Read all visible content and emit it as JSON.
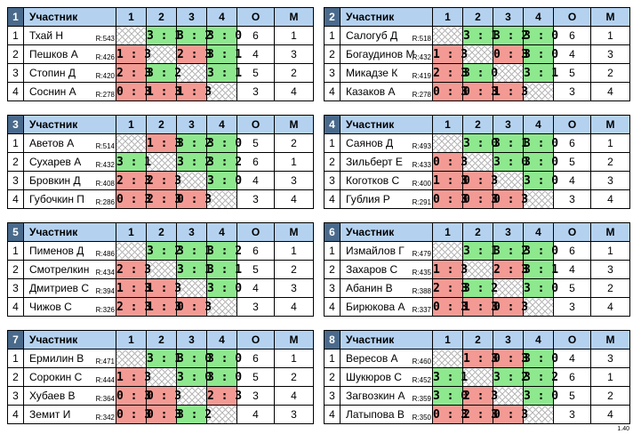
{
  "header": {
    "participant": "Участник",
    "cols": [
      "1",
      "2",
      "3",
      "4"
    ],
    "o": "О",
    "m": "М"
  },
  "version": "1.40",
  "groups": [
    {
      "num": "1",
      "rows": [
        {
          "pos": "1",
          "name": "Тхай Н",
          "rating": "R:543",
          "res": [
            "",
            "3 : 1",
            "3 : 2",
            "3 : 0"
          ],
          "o": "6",
          "m": "1"
        },
        {
          "pos": "2",
          "name": "Пешков А",
          "rating": "R:426",
          "res": [
            "1 : 3",
            "",
            "2 : 3",
            "3 : 1"
          ],
          "o": "4",
          "m": "3"
        },
        {
          "pos": "3",
          "name": "Стопин Д",
          "rating": "R:420",
          "res": [
            "2 : 3",
            "3 : 2",
            "",
            "3 : 1"
          ],
          "o": "5",
          "m": "2"
        },
        {
          "pos": "4",
          "name": "Соснин А",
          "rating": "R:278",
          "res": [
            "0 : 3",
            "1 : 3",
            "1 : 3",
            ""
          ],
          "o": "3",
          "m": "4"
        }
      ]
    },
    {
      "num": "2",
      "rows": [
        {
          "pos": "1",
          "name": "Салогуб Д",
          "rating": "R:518",
          "res": [
            "",
            "3 : 1",
            "3 : 2",
            "3 : 0"
          ],
          "o": "6",
          "m": "1"
        },
        {
          "pos": "2",
          "name": "Богаудинов М",
          "rating": "R:432",
          "res": [
            "1 : 3",
            "",
            "0 : 3",
            "3 : 0"
          ],
          "o": "4",
          "m": "3"
        },
        {
          "pos": "3",
          "name": "Микадзе К",
          "rating": "R:419",
          "res": [
            "2 : 3",
            "3 : 0",
            "",
            "3 : 1"
          ],
          "o": "5",
          "m": "2"
        },
        {
          "pos": "4",
          "name": "Казаков А",
          "rating": "R:278",
          "res": [
            "0 : 3",
            "0 : 3",
            "1 : 3",
            ""
          ],
          "o": "3",
          "m": "4"
        }
      ]
    },
    {
      "num": "3",
      "rows": [
        {
          "pos": "1",
          "name": "Аветов А",
          "rating": "R:514",
          "res": [
            "",
            "1 : 3",
            "3 : 2",
            "3 : 0"
          ],
          "o": "5",
          "m": "2"
        },
        {
          "pos": "2",
          "name": "Сухарев А",
          "rating": "R:432",
          "res": [
            "3 : 1",
            "",
            "3 : 2",
            "3 : 2"
          ],
          "o": "6",
          "m": "1"
        },
        {
          "pos": "3",
          "name": "Бровкин Д",
          "rating": "R:408",
          "res": [
            "2 : 3",
            "2 : 3",
            "",
            "3 : 0"
          ],
          "o": "4",
          "m": "3"
        },
        {
          "pos": "4",
          "name": "Губочкин П",
          "rating": "R:286",
          "res": [
            "0 : 3",
            "2 : 3",
            "0 : 3",
            ""
          ],
          "o": "3",
          "m": "4"
        }
      ]
    },
    {
      "num": "4",
      "rows": [
        {
          "pos": "1",
          "name": "Саянов Д",
          "rating": "R:493",
          "res": [
            "",
            "3 : 0",
            "3 : 1",
            "3 : 0"
          ],
          "o": "6",
          "m": "1"
        },
        {
          "pos": "2",
          "name": "Зильберт Е",
          "rating": "R:433",
          "res": [
            "0 : 3",
            "",
            "3 : 0",
            "3 : 0"
          ],
          "o": "5",
          "m": "2"
        },
        {
          "pos": "3",
          "name": "Коготков С",
          "rating": "R:400",
          "res": [
            "1 : 3",
            "0 : 3",
            "",
            "3 : 0"
          ],
          "o": "4",
          "m": "3"
        },
        {
          "pos": "4",
          "name": "Гублия Р",
          "rating": "R:291",
          "res": [
            "0 : 3",
            "0 : 3",
            "0 : 3",
            ""
          ],
          "o": "3",
          "m": "4"
        }
      ]
    },
    {
      "num": "5",
      "rows": [
        {
          "pos": "1",
          "name": "Пименов Д",
          "rating": "R:486",
          "res": [
            "",
            "3 : 2",
            "3 : 1",
            "3 : 2"
          ],
          "o": "6",
          "m": "1"
        },
        {
          "pos": "2",
          "name": "Смотрелкин",
          "rating": "R:434",
          "res": [
            "2 : 3",
            "",
            "3 : 1",
            "3 : 1"
          ],
          "o": "5",
          "m": "2"
        },
        {
          "pos": "3",
          "name": "Дмитриев С",
          "rating": "R:394",
          "res": [
            "1 : 3",
            "1 : 3",
            "",
            "3 : 0"
          ],
          "o": "4",
          "m": "3"
        },
        {
          "pos": "4",
          "name": "Чижов С",
          "rating": "R:326",
          "res": [
            "2 : 3",
            "1 : 3",
            "0 : 3",
            ""
          ],
          "o": "3",
          "m": "4"
        }
      ]
    },
    {
      "num": "6",
      "rows": [
        {
          "pos": "1",
          "name": "Измайлов Г",
          "rating": "R:479",
          "res": [
            "",
            "3 : 1",
            "3 : 2",
            "3 : 0"
          ],
          "o": "6",
          "m": "1"
        },
        {
          "pos": "2",
          "name": "Захаров С",
          "rating": "R:435",
          "res": [
            "1 : 3",
            "",
            "2 : 3",
            "3 : 1"
          ],
          "o": "4",
          "m": "3"
        },
        {
          "pos": "3",
          "name": "Абанин В",
          "rating": "R:388",
          "res": [
            "2 : 3",
            "3 : 2",
            "",
            "3 : 0"
          ],
          "o": "5",
          "m": "2"
        },
        {
          "pos": "4",
          "name": "Бирюкова А",
          "rating": "R:337",
          "res": [
            "0 : 3",
            "1 : 3",
            "0 : 3",
            ""
          ],
          "o": "3",
          "m": "4"
        }
      ]
    },
    {
      "num": "7",
      "rows": [
        {
          "pos": "1",
          "name": "Ермилин В",
          "rating": "R:471",
          "res": [
            "",
            "3 : 1",
            "3 : 0",
            "3 : 0"
          ],
          "o": "6",
          "m": "1"
        },
        {
          "pos": "2",
          "name": "Сорокин С",
          "rating": "R:444",
          "res": [
            "1 : 3",
            "",
            "3 : 0",
            "3 : 0"
          ],
          "o": "5",
          "m": "2"
        },
        {
          "pos": "3",
          "name": "Хубаев В",
          "rating": "R:364",
          "res": [
            "0 : 3",
            "0 : 3",
            "",
            "2 : 3"
          ],
          "o": "3",
          "m": "4"
        },
        {
          "pos": "4",
          "name": "Земит И",
          "rating": "R:342",
          "res": [
            "0 : 3",
            "0 : 3",
            "3 : 2",
            ""
          ],
          "o": "4",
          "m": "3"
        }
      ]
    },
    {
      "num": "8",
      "rows": [
        {
          "pos": "1",
          "name": "Вересов А",
          "rating": "R:460",
          "res": [
            "",
            "1 : 3",
            "0 : 3",
            "3 : 0"
          ],
          "o": "4",
          "m": "3"
        },
        {
          "pos": "2",
          "name": "Шукюров С",
          "rating": "R:452",
          "res": [
            "3 : 1",
            "",
            "3 : 2",
            "3 : 2"
          ],
          "o": "6",
          "m": "1"
        },
        {
          "pos": "3",
          "name": "Загвозкин А",
          "rating": "R:359",
          "res": [
            "3 : 0",
            "2 : 3",
            "",
            "3 : 0"
          ],
          "o": "5",
          "m": "2"
        },
        {
          "pos": "4",
          "name": "Латыпова В",
          "rating": "R:350",
          "res": [
            "0 : 3",
            "2 : 3",
            "0 : 3",
            ""
          ],
          "o": "3",
          "m": "4"
        }
      ]
    }
  ]
}
